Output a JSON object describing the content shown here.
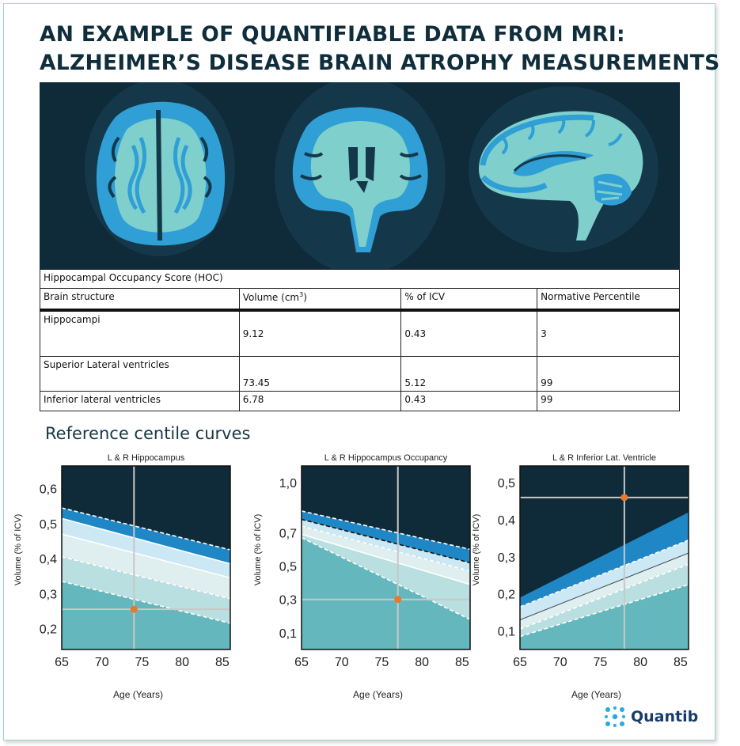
{
  "title": {
    "line1": "AN EXAMPLE OF QUANTIFIABLE DATA FROM MRI:",
    "line2": "ALZHEIMER’S DISEASE BRAIN ATROPHY MEASUREMENTS"
  },
  "table": {
    "caption": "Hippocampal Occupancy Score (HOC)",
    "headers": [
      "Brain structure",
      "Volume (cm",
      "% of ICV",
      "Normative Percentile"
    ],
    "volume_unit_sup": "3",
    "volume_unit_close": ")",
    "rows": [
      [
        "Hippocampi",
        "9.12",
        "0.43",
        "3"
      ],
      [
        "Superior Lateral ventricles",
        "73.45",
        "5.12",
        "99"
      ],
      [
        "Inferior lateral ventricles",
        "6.78",
        "0.43",
        "99"
      ]
    ]
  },
  "section_title": "Reference centile curves",
  "logo": {
    "name": "Quantib"
  },
  "colors": {
    "background_dark": "#0f2a38",
    "band_dark_blue": "#1f87c6",
    "band_light_blue": "#cbe8f4",
    "band_pale": "#dfeeee",
    "band_mid": "#b9dfe0",
    "fill_teal": "#64b8bd",
    "marker": "#e8782c",
    "brain_blue": "#2f9fd6",
    "brain_teal": "#7fd0cc"
  },
  "chart_data": [
    {
      "type": "area",
      "title": "L & R Hippocampus",
      "xlabel": "Age (Years)",
      "ylabel": "Volume (% of ICV)",
      "xlim": [
        65,
        86
      ],
      "ylim": [
        0.14,
        0.665
      ],
      "x_ticks": [
        65,
        70,
        75,
        80,
        85
      ],
      "x_tick_labels": [
        "65",
        "70",
        "75",
        "80",
        "85"
      ],
      "y_ticks": [
        0.2,
        0.3,
        0.4,
        0.5,
        0.6
      ],
      "y_tick_labels": [
        "0,2",
        "0,3",
        "0,4",
        "0,5",
        "0,6"
      ],
      "x": [
        65,
        86
      ],
      "bands": [
        {
          "top": [
            0.545,
            0.425
          ],
          "bottom": [
            0.515,
            0.385
          ],
          "fill": "#1f87c6",
          "top_line": "dashed"
        },
        {
          "top": [
            0.515,
            0.385
          ],
          "bottom": [
            0.47,
            0.345
          ],
          "fill": "#cbe8f4",
          "top_line": "solid"
        },
        {
          "top": [
            0.47,
            0.345
          ],
          "bottom": [
            0.405,
            0.285
          ],
          "fill": "#dfeeee",
          "top_line": "solid"
        },
        {
          "top": [
            0.405,
            0.285
          ],
          "bottom": [
            0.335,
            0.215
          ],
          "fill": "#b9dfe0",
          "top_line": "dashed"
        },
        {
          "top": [
            0.335,
            0.215
          ],
          "bottom": [
            0.14,
            0.14
          ],
          "fill": "#64b8bd",
          "top_line": "dashed"
        }
      ],
      "point": {
        "x": 74,
        "y": 0.255
      }
    },
    {
      "type": "area",
      "title": "L & R Hippocampus Occupancy",
      "xlabel": "Age (Years)",
      "ylabel": "Volume (% of ICV)",
      "xlim": [
        65,
        86
      ],
      "ylim": [
        0.0,
        1.1
      ],
      "x_ticks": [
        65,
        70,
        75,
        80,
        85
      ],
      "x_tick_labels": [
        "65",
        "70",
        "75",
        "80",
        "85"
      ],
      "y_ticks": [
        0.1,
        0.3,
        0.5,
        0.7,
        1.0
      ],
      "y_tick_labels": [
        "0,1",
        "0,3",
        "0,5",
        "0,7",
        "1,0"
      ],
      "x": [
        65,
        86
      ],
      "bands": [
        {
          "top": [
            0.83,
            0.6
          ],
          "bottom": [
            0.78,
            0.52
          ],
          "fill": "#1f87c6",
          "top_line": "dashed"
        },
        {
          "top": [
            0.78,
            0.52
          ],
          "bottom": [
            0.74,
            0.47
          ],
          "fill": "#cbe8f4",
          "top_line": "dashed-dark"
        },
        {
          "top": [
            0.74,
            0.47
          ],
          "bottom": [
            0.69,
            0.39
          ],
          "fill": "#dfeeee",
          "top_line": "dashed"
        },
        {
          "top": [
            0.69,
            0.39
          ],
          "bottom": [
            0.67,
            0.18
          ],
          "fill": "#b9dfe0",
          "top_line": "solid"
        },
        {
          "top": [
            0.67,
            0.18
          ],
          "bottom": [
            0.0,
            0.0
          ],
          "fill": "#64b8bd",
          "top_line": "dashed"
        }
      ],
      "point": {
        "x": 77,
        "y": 0.3
      }
    },
    {
      "type": "area",
      "title": "L & R Inferior Lat. Ventricle",
      "xlabel": "Age (Years)",
      "ylabel": "Volume (% of ICV)",
      "xlim": [
        65,
        86
      ],
      "ylim": [
        0.05,
        0.545
      ],
      "x_ticks": [
        65,
        70,
        75,
        80,
        85
      ],
      "x_tick_labels": [
        "65",
        "70",
        "75",
        "80",
        "85"
      ],
      "y_ticks": [
        0.1,
        0.2,
        0.3,
        0.4,
        0.5
      ],
      "y_tick_labels": [
        "0,1",
        "0,2",
        "0,3",
        "0,4",
        "0,5"
      ],
      "x": [
        65,
        86
      ],
      "bands": [
        {
          "top": [
            0.19,
            0.42
          ],
          "bottom": [
            0.165,
            0.345
          ],
          "fill": "#1f87c6",
          "top_line": "none"
        },
        {
          "top": [
            0.165,
            0.345
          ],
          "bottom": [
            0.13,
            0.31
          ],
          "fill": "#cbe8f4",
          "top_line": "dashed"
        },
        {
          "top": [
            0.13,
            0.31
          ],
          "bottom": [
            0.105,
            0.28
          ],
          "fill": "#dfeeee",
          "top_line": "dark"
        },
        {
          "top": [
            0.105,
            0.28
          ],
          "bottom": [
            0.085,
            0.225
          ],
          "fill": "#b9dfe0",
          "top_line": "dashed"
        },
        {
          "top": [
            0.085,
            0.225
          ],
          "bottom": [
            0.05,
            0.05
          ],
          "fill": "#64b8bd",
          "top_line": "dashed"
        }
      ],
      "point": {
        "x": 78,
        "y": 0.46
      }
    }
  ]
}
